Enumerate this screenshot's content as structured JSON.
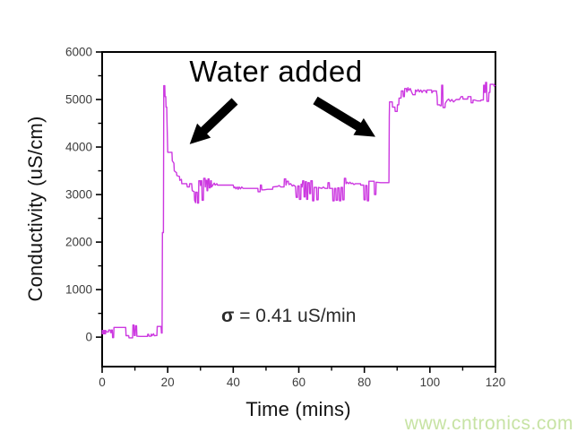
{
  "figure": {
    "watermark": "www.cntronics.com",
    "annotations": {
      "water_added": "Water added",
      "sigma_symbol": "σ",
      "sigma_rest": " = 0.41 uS/min"
    }
  },
  "chart_data": {
    "type": "line",
    "title": "",
    "xlabel": "Time (mins)",
    "ylabel": "Conductivity (uS/cm)",
    "xlim": [
      0,
      120
    ],
    "ylim": [
      -620,
      6000
    ],
    "x_ticks": [
      0,
      20,
      40,
      60,
      80,
      100,
      120
    ],
    "x_minor_ticks": [
      10,
      30,
      50,
      70,
      90,
      110
    ],
    "y_ticks": [
      0,
      1000,
      2000,
      3000,
      4000,
      5000,
      6000
    ],
    "y_minor_ticks": [
      500,
      1500,
      2500,
      3500,
      4500,
      5500
    ],
    "grid": false,
    "legend": null,
    "frame_color": "#000000",
    "tick_label_color": "#3d3d3d",
    "line_color": "#cc38e0",
    "series": [
      {
        "name": "conductivity",
        "points": [
          [
            0,
            105
          ],
          [
            0.2,
            140
          ],
          [
            0.3,
            105
          ],
          [
            0.8,
            105
          ],
          [
            0.9,
            140
          ],
          [
            1.1,
            140
          ],
          [
            1.2,
            110
          ],
          [
            1.9,
            110
          ],
          [
            2.0,
            150
          ],
          [
            2.5,
            150
          ],
          [
            2.6,
            95
          ],
          [
            2.8,
            95
          ],
          [
            2.9,
            150
          ],
          [
            3.1,
            150
          ],
          [
            3.2,
            -10
          ],
          [
            3.5,
            -10
          ],
          [
            3.6,
            205
          ],
          [
            7.2,
            205
          ],
          [
            7.3,
            30
          ],
          [
            8.1,
            30
          ],
          [
            8.2,
            -15
          ],
          [
            9.3,
            -15
          ],
          [
            9.4,
            255
          ],
          [
            9.7,
            255
          ],
          [
            9.8,
            35
          ],
          [
            10.1,
            35
          ],
          [
            10.2,
            240
          ],
          [
            10.5,
            240
          ],
          [
            10.6,
            20
          ],
          [
            11.5,
            15
          ],
          [
            13.8,
            15
          ],
          [
            13.9,
            60
          ],
          [
            14.2,
            60
          ],
          [
            14.3,
            20
          ],
          [
            14.9,
            20
          ],
          [
            15.0,
            65
          ],
          [
            15.2,
            30
          ],
          [
            15.7,
            70
          ],
          [
            15.9,
            30
          ],
          [
            16.7,
            35
          ],
          [
            16.8,
            225
          ],
          [
            18.0,
            225
          ],
          [
            18.1,
            85
          ],
          [
            18.3,
            85
          ],
          [
            18.4,
            2200
          ],
          [
            18.7,
            2200
          ],
          [
            18.8,
            5290
          ],
          [
            19.1,
            5290
          ],
          [
            19.2,
            5060
          ],
          [
            19.4,
            5060
          ],
          [
            19.5,
            4840
          ],
          [
            19.7,
            4840
          ],
          [
            19.8,
            4540
          ],
          [
            20.0,
            3890
          ],
          [
            21.3,
            3890
          ],
          [
            21.4,
            3710
          ],
          [
            21.9,
            3660
          ],
          [
            22.0,
            3500
          ],
          [
            22.7,
            3460
          ],
          [
            22.8,
            3400
          ],
          [
            23.6,
            3380
          ],
          [
            23.7,
            3300
          ],
          [
            24.2,
            3320
          ],
          [
            24.3,
            3230
          ],
          [
            25.8,
            3230
          ],
          [
            26.0,
            3160
          ],
          [
            26.6,
            3160
          ],
          [
            26.7,
            3230
          ],
          [
            27.3,
            3230
          ],
          [
            27.5,
            3080
          ],
          [
            28.1,
            3060
          ],
          [
            28.2,
            2880
          ],
          [
            28.5,
            2830
          ],
          [
            28.6,
            3050
          ],
          [
            29.0,
            3050
          ],
          [
            29.1,
            2820
          ],
          [
            29.4,
            2820
          ],
          [
            29.5,
            3290
          ],
          [
            29.9,
            3290
          ],
          [
            30.0,
            3190
          ],
          [
            30.1,
            3290
          ],
          [
            30.4,
            3290
          ],
          [
            30.5,
            2880
          ],
          [
            30.9,
            2880
          ],
          [
            31.0,
            3340
          ],
          [
            31.4,
            3340
          ],
          [
            31.5,
            3160
          ],
          [
            31.6,
            3300
          ],
          [
            31.9,
            3300
          ],
          [
            32.0,
            3080
          ],
          [
            32.2,
            3080
          ],
          [
            32.3,
            3330
          ],
          [
            32.6,
            3330
          ],
          [
            32.7,
            3140
          ],
          [
            33.0,
            3140
          ],
          [
            33.1,
            3290
          ],
          [
            33.3,
            3290
          ],
          [
            33.4,
            3160
          ],
          [
            33.9,
            3210
          ],
          [
            34.2,
            3240
          ],
          [
            34.5,
            3200
          ],
          [
            35.0,
            3230
          ],
          [
            35.2,
            3200
          ],
          [
            40.0,
            3200
          ],
          [
            40.2,
            3140
          ],
          [
            40.5,
            3160
          ],
          [
            40.8,
            3120
          ],
          [
            41.2,
            3160
          ],
          [
            41.5,
            3110
          ],
          [
            41.8,
            3160
          ],
          [
            42.2,
            3120
          ],
          [
            42.6,
            3160
          ],
          [
            43.0,
            3130
          ],
          [
            47.5,
            3130
          ],
          [
            47.6,
            3060
          ],
          [
            48.2,
            3060
          ],
          [
            48.3,
            3200
          ],
          [
            48.6,
            3200
          ],
          [
            48.7,
            3100
          ],
          [
            49.4,
            3100
          ],
          [
            50.5,
            3110
          ],
          [
            52.0,
            3110
          ],
          [
            52.1,
            3160
          ],
          [
            53.5,
            3170
          ],
          [
            54.0,
            3190
          ],
          [
            54.5,
            3160
          ],
          [
            55.5,
            3160
          ],
          [
            55.6,
            3330
          ],
          [
            56.0,
            3330
          ],
          [
            56.1,
            3200
          ],
          [
            56.4,
            3280
          ],
          [
            56.8,
            3280
          ],
          [
            57.0,
            3210
          ],
          [
            57.5,
            3230
          ],
          [
            58.0,
            3180
          ],
          [
            58.4,
            3200
          ],
          [
            59.0,
            3170
          ],
          [
            59.2,
            2940
          ],
          [
            59.6,
            2940
          ],
          [
            59.7,
            3180
          ],
          [
            60.1,
            3180
          ],
          [
            60.2,
            2900
          ],
          [
            60.6,
            2900
          ],
          [
            60.7,
            3220
          ],
          [
            61.0,
            3160
          ],
          [
            61.2,
            3290
          ],
          [
            61.5,
            3290
          ],
          [
            61.6,
            2950
          ],
          [
            61.9,
            2950
          ],
          [
            62.0,
            3270
          ],
          [
            62.3,
            3270
          ],
          [
            62.4,
            2900
          ],
          [
            62.7,
            2900
          ],
          [
            62.8,
            3250
          ],
          [
            63.2,
            3250
          ],
          [
            63.3,
            3020
          ],
          [
            63.6,
            3020
          ],
          [
            63.7,
            3290
          ],
          [
            64.1,
            3290
          ],
          [
            64.2,
            2870
          ],
          [
            64.6,
            2870
          ],
          [
            64.7,
            3150
          ],
          [
            65.4,
            3150
          ],
          [
            65.5,
            2890
          ],
          [
            65.9,
            2890
          ],
          [
            66.0,
            3150
          ],
          [
            67.0,
            3130
          ],
          [
            67.5,
            3160
          ],
          [
            68.0,
            3130
          ],
          [
            68.8,
            3130
          ],
          [
            68.9,
            3250
          ],
          [
            69.3,
            3250
          ],
          [
            69.4,
            3130
          ],
          [
            70.3,
            3130
          ],
          [
            70.4,
            2870
          ],
          [
            70.8,
            2870
          ],
          [
            70.9,
            3130
          ],
          [
            71.3,
            3130
          ],
          [
            71.4,
            2880
          ],
          [
            71.8,
            2880
          ],
          [
            71.9,
            3140
          ],
          [
            72.3,
            3140
          ],
          [
            72.4,
            2870
          ],
          [
            72.8,
            2870
          ],
          [
            72.9,
            3150
          ],
          [
            73.3,
            3150
          ],
          [
            73.4,
            2890
          ],
          [
            73.8,
            2890
          ],
          [
            73.9,
            3340
          ],
          [
            74.3,
            3340
          ],
          [
            74.4,
            3230
          ],
          [
            74.8,
            3260
          ],
          [
            75.2,
            3230
          ],
          [
            75.6,
            3260
          ],
          [
            76.0,
            3230
          ],
          [
            76.4,
            3240
          ],
          [
            76.8,
            3210
          ],
          [
            77.3,
            3230
          ],
          [
            78.8,
            3230
          ],
          [
            78.9,
            3200
          ],
          [
            79.8,
            3200
          ],
          [
            79.9,
            2890
          ],
          [
            80.3,
            2890
          ],
          [
            80.4,
            3190
          ],
          [
            80.8,
            3190
          ],
          [
            80.9,
            2870
          ],
          [
            81.3,
            2870
          ],
          [
            81.4,
            3280
          ],
          [
            82.1,
            3280
          ],
          [
            83.0,
            3280
          ],
          [
            83.1,
            3000
          ],
          [
            83.5,
            3000
          ],
          [
            83.6,
            3260
          ],
          [
            85.0,
            3250
          ],
          [
            87.5,
            3250
          ],
          [
            87.6,
            4640
          ],
          [
            87.7,
            4950
          ],
          [
            88.5,
            4950
          ],
          [
            88.6,
            4840
          ],
          [
            89.3,
            4840
          ],
          [
            89.4,
            4750
          ],
          [
            90.0,
            4750
          ],
          [
            90.1,
            4890
          ],
          [
            90.5,
            4890
          ],
          [
            90.6,
            5030
          ],
          [
            91.2,
            5030
          ],
          [
            91.3,
            5180
          ],
          [
            91.8,
            5180
          ],
          [
            91.9,
            5060
          ],
          [
            92.2,
            5060
          ],
          [
            92.3,
            5230
          ],
          [
            92.8,
            5230
          ],
          [
            93.0,
            5160
          ],
          [
            93.3,
            5250
          ],
          [
            93.6,
            5190
          ],
          [
            94.0,
            5230
          ],
          [
            94.4,
            5160
          ],
          [
            94.8,
            5100
          ],
          [
            95.5,
            5100
          ],
          [
            95.6,
            5200
          ],
          [
            96.0,
            5170
          ],
          [
            96.4,
            5210
          ],
          [
            96.8,
            5160
          ],
          [
            97.2,
            5200
          ],
          [
            97.6,
            5150
          ],
          [
            98.0,
            5190
          ],
          [
            98.5,
            5190
          ],
          [
            99.0,
            5140
          ],
          [
            99.1,
            5200
          ],
          [
            100.5,
            5200
          ],
          [
            100.6,
            5140
          ],
          [
            101.0,
            5180
          ],
          [
            102.0,
            5180
          ],
          [
            102.2,
            5060
          ],
          [
            102.3,
            4890
          ],
          [
            103.0,
            4890
          ],
          [
            103.1,
            4870
          ],
          [
            103.5,
            4870
          ],
          [
            103.6,
            5300
          ],
          [
            103.9,
            5300
          ],
          [
            104.0,
            4830
          ],
          [
            104.6,
            4830
          ],
          [
            104.7,
            4920
          ],
          [
            105.2,
            4980
          ],
          [
            105.7,
            5010
          ],
          [
            106.2,
            4960
          ],
          [
            106.7,
            5000
          ],
          [
            107.2,
            4950
          ],
          [
            108.0,
            5000
          ],
          [
            109.0,
            5000
          ],
          [
            109.5,
            5060
          ],
          [
            110.0,
            5060
          ],
          [
            110.1,
            5010
          ],
          [
            111.5,
            5010
          ],
          [
            111.6,
            5060
          ],
          [
            112.5,
            5060
          ],
          [
            112.6,
            4930
          ],
          [
            113.1,
            4930
          ],
          [
            113.2,
            4990
          ],
          [
            113.7,
            4990
          ],
          [
            114.5,
            4970
          ],
          [
            115.5,
            4970
          ],
          [
            115.6,
            4990
          ],
          [
            116.3,
            4990
          ],
          [
            116.4,
            5300
          ],
          [
            116.6,
            5300
          ],
          [
            116.7,
            5150
          ],
          [
            116.9,
            5150
          ],
          [
            117.0,
            5360
          ],
          [
            117.3,
            5360
          ],
          [
            117.4,
            4960
          ],
          [
            117.9,
            4960
          ],
          [
            118.0,
            5150
          ],
          [
            118.3,
            5150
          ],
          [
            118.4,
            5320
          ],
          [
            119.5,
            5320
          ],
          [
            119.6,
            5280
          ],
          [
            120,
            5300
          ]
        ]
      }
    ]
  }
}
